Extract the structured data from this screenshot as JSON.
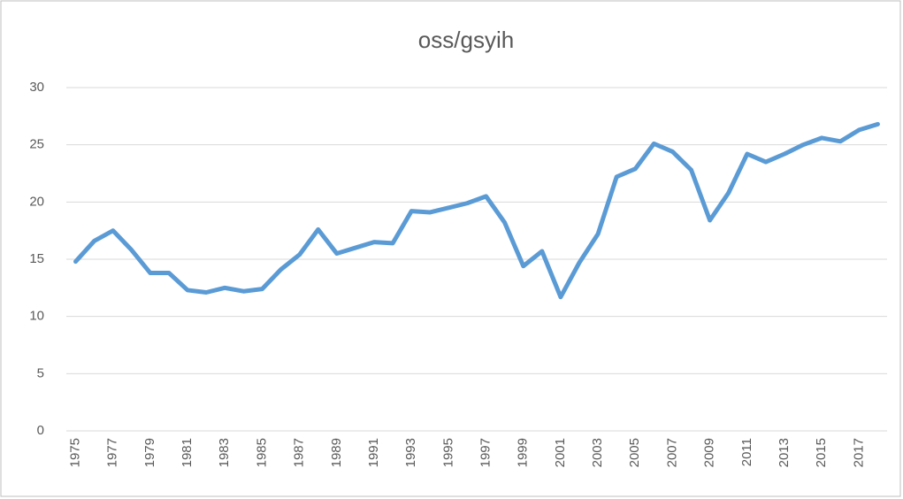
{
  "chart_data": {
    "type": "line",
    "title": "oss/gsyih",
    "categories": [
      "1975",
      null,
      "1977",
      null,
      "1979",
      null,
      "1981",
      null,
      "1983",
      null,
      "1985",
      null,
      "1987",
      null,
      "1989",
      null,
      "1991",
      null,
      "1993",
      null,
      "1995",
      null,
      "1997",
      null,
      "1999",
      null,
      "2001",
      null,
      "2003",
      null,
      "2005",
      null,
      "2007",
      null,
      "2009",
      null,
      "2011",
      null,
      "2013",
      null,
      "2015",
      null,
      "2017",
      null
    ],
    "values": [
      14.8,
      16.6,
      17.5,
      15.8,
      13.8,
      13.8,
      12.3,
      12.1,
      12.5,
      12.2,
      12.4,
      14.1,
      15.4,
      17.6,
      15.5,
      16.0,
      16.5,
      16.4,
      19.2,
      19.1,
      19.5,
      19.9,
      20.5,
      18.2,
      14.4,
      15.7,
      11.7,
      14.7,
      17.2,
      22.2,
      22.9,
      25.1,
      24.4,
      22.8,
      18.4,
      20.8,
      24.2,
      23.5,
      24.2,
      25.0,
      25.6,
      25.3,
      26.3,
      26.8
    ],
    "color": "#5b9bd5",
    "ylim": [
      0,
      30
    ],
    "yticks": [
      0,
      5,
      10,
      15,
      20,
      25,
      30
    ],
    "grid": true
  }
}
